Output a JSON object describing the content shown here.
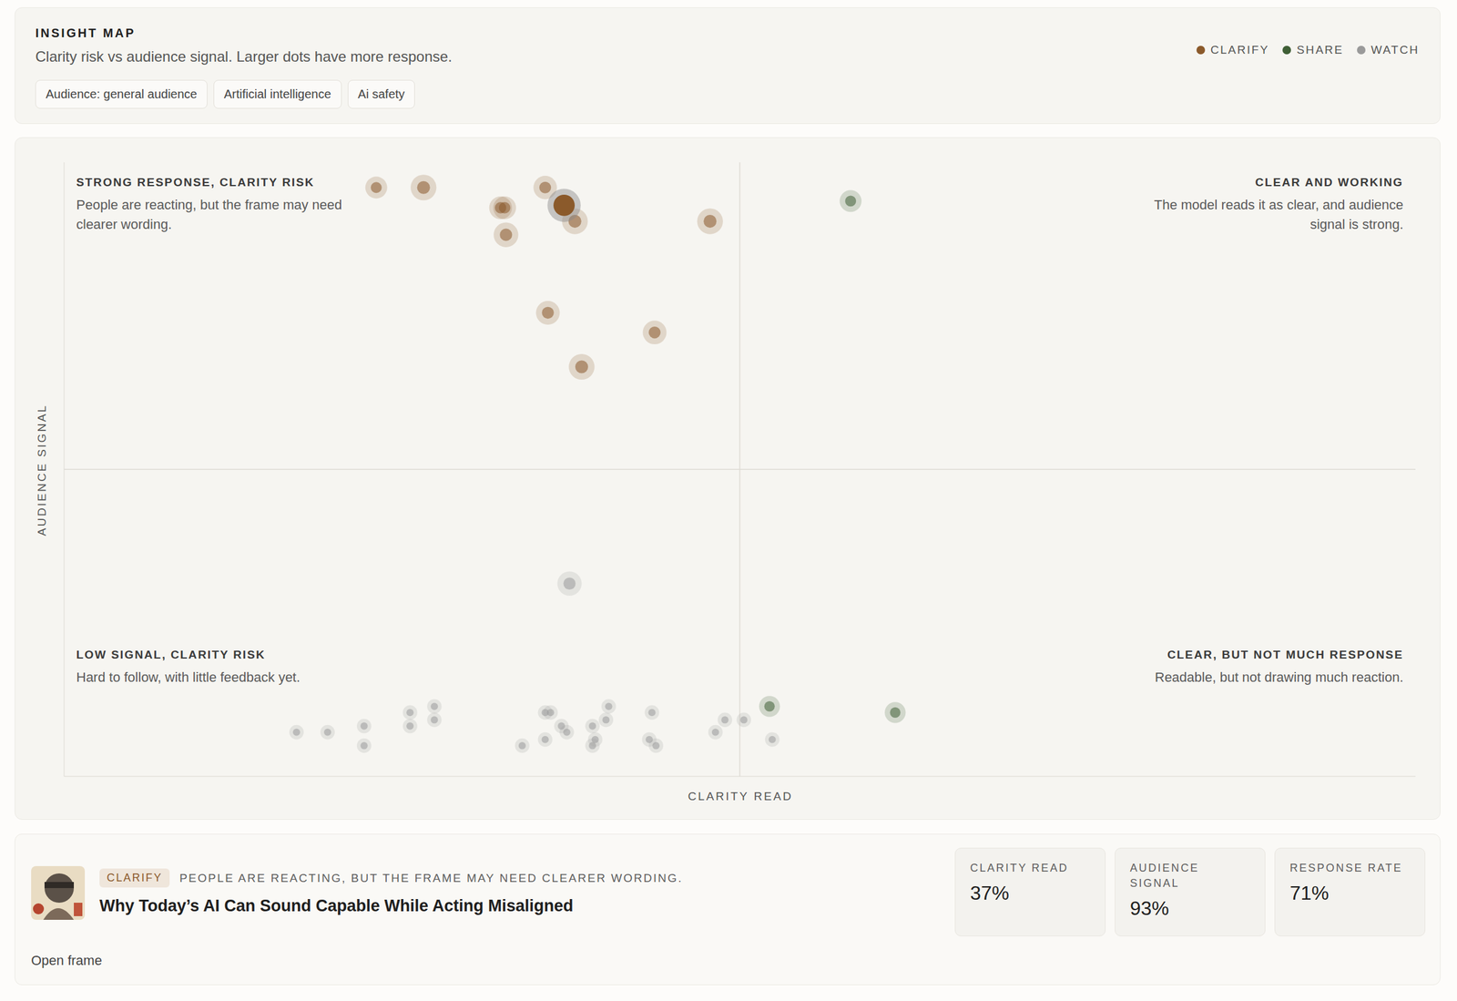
{
  "header": {
    "title": "INSIGHT MAP",
    "subtitle": "Clarity risk vs audience signal. Larger dots have more response.",
    "chips": [
      "Audience: general audience",
      "Artificial intelligence",
      "Ai safety"
    ]
  },
  "chart_data": {
    "type": "scatter",
    "x_label": "CLARITY READ",
    "y_label": "AUDIENCE SIGNAL",
    "xlim": [
      0,
      100
    ],
    "ylim": [
      0,
      100
    ],
    "zlim": [
      0,
      100
    ],
    "tick_labels": false,
    "grid": false,
    "legend": "top right",
    "quadrant_lines": {
      "x": 50,
      "y": 50
    },
    "quadrants": [
      {
        "title": "STRONG RESPONSE, CLARITY RISK",
        "text": "People are reacting, but the frame may need clearer wording."
      },
      {
        "title": "CLEAR AND WORKING",
        "text": "The model reads it as clear, and audience signal is strong."
      },
      {
        "title": "LOW SIGNAL, CLARITY RISK",
        "text": "Hard to follow, with little feedback yet."
      },
      {
        "title": "CLEAR, BUT NOT MUCH RESPONSE",
        "text": "Readable, but not drawing much reaction."
      }
    ],
    "series": [
      {
        "name": "CLARIFY",
        "color": "#8b5a2b",
        "x": [
          23.1,
          26.6,
          35.6,
          32.3,
          32.6,
          37.8,
          47.8,
          32.7,
          35.8,
          43.7,
          38.3
        ],
        "y": [
          95.9,
          95.9,
          95.9,
          92.6,
          92.6,
          90.4,
          90.4,
          88.2,
          75.5,
          72.3,
          66.7
        ],
        "sizes": [
          27,
          40,
          32,
          30,
          30,
          40,
          40,
          36,
          33,
          33,
          40
        ]
      },
      {
        "name": "SHARE",
        "color": "#3f5f36",
        "x": [
          58.2,
          52.2,
          61.5
        ],
        "y": [
          93.7,
          11.4,
          10.4
        ],
        "sizes": [
          27,
          24,
          24
        ]
      },
      {
        "name": "WATCH",
        "color": "#9a9a9a",
        "x": [
          37.4,
          17.2,
          19.5,
          22.2,
          22.2,
          25.6,
          25.6,
          27.4,
          27.4,
          33.9,
          35.6,
          36.0,
          35.6,
          36.8,
          37.2,
          39.1,
          39.3,
          39.1,
          40.1,
          40.3,
          43.5,
          43.3,
          43.8,
          48.2,
          48.9,
          50.3,
          52.4
        ],
        "y": [
          31.4,
          7.2,
          7.2,
          8.2,
          5.0,
          10.4,
          8.2,
          11.4,
          9.2,
          5.0,
          10.4,
          10.4,
          6.0,
          8.2,
          7.2,
          8.2,
          6.0,
          5.0,
          9.2,
          11.4,
          10.4,
          6.0,
          5.0,
          7.2,
          9.2,
          9.2,
          6.0
        ],
        "sizes": [
          35,
          8,
          8,
          8,
          8,
          8,
          8,
          8,
          8,
          8,
          8,
          8,
          8,
          8,
          8,
          8,
          8,
          8,
          8,
          8,
          8,
          8,
          8,
          8,
          8,
          8,
          8
        ]
      }
    ]
  },
  "selected": {
    "status": "CLARIFY",
    "description": "PEOPLE ARE REACTING, BUT THE FRAME MAY NEED CLEARER WORDING.",
    "title": "Why Today’s AI Can Sound Capable While Acting Misaligned",
    "metrics": [
      {
        "name": "CLARITY READ",
        "value": 37,
        "value_label": "37%"
      },
      {
        "name": "AUDIENCE SIGNAL",
        "value": 93,
        "value_label": "93%"
      },
      {
        "name": "RESPONSE RATE",
        "value": 71,
        "value_label": "71%"
      }
    ],
    "link": "Open frame"
  }
}
